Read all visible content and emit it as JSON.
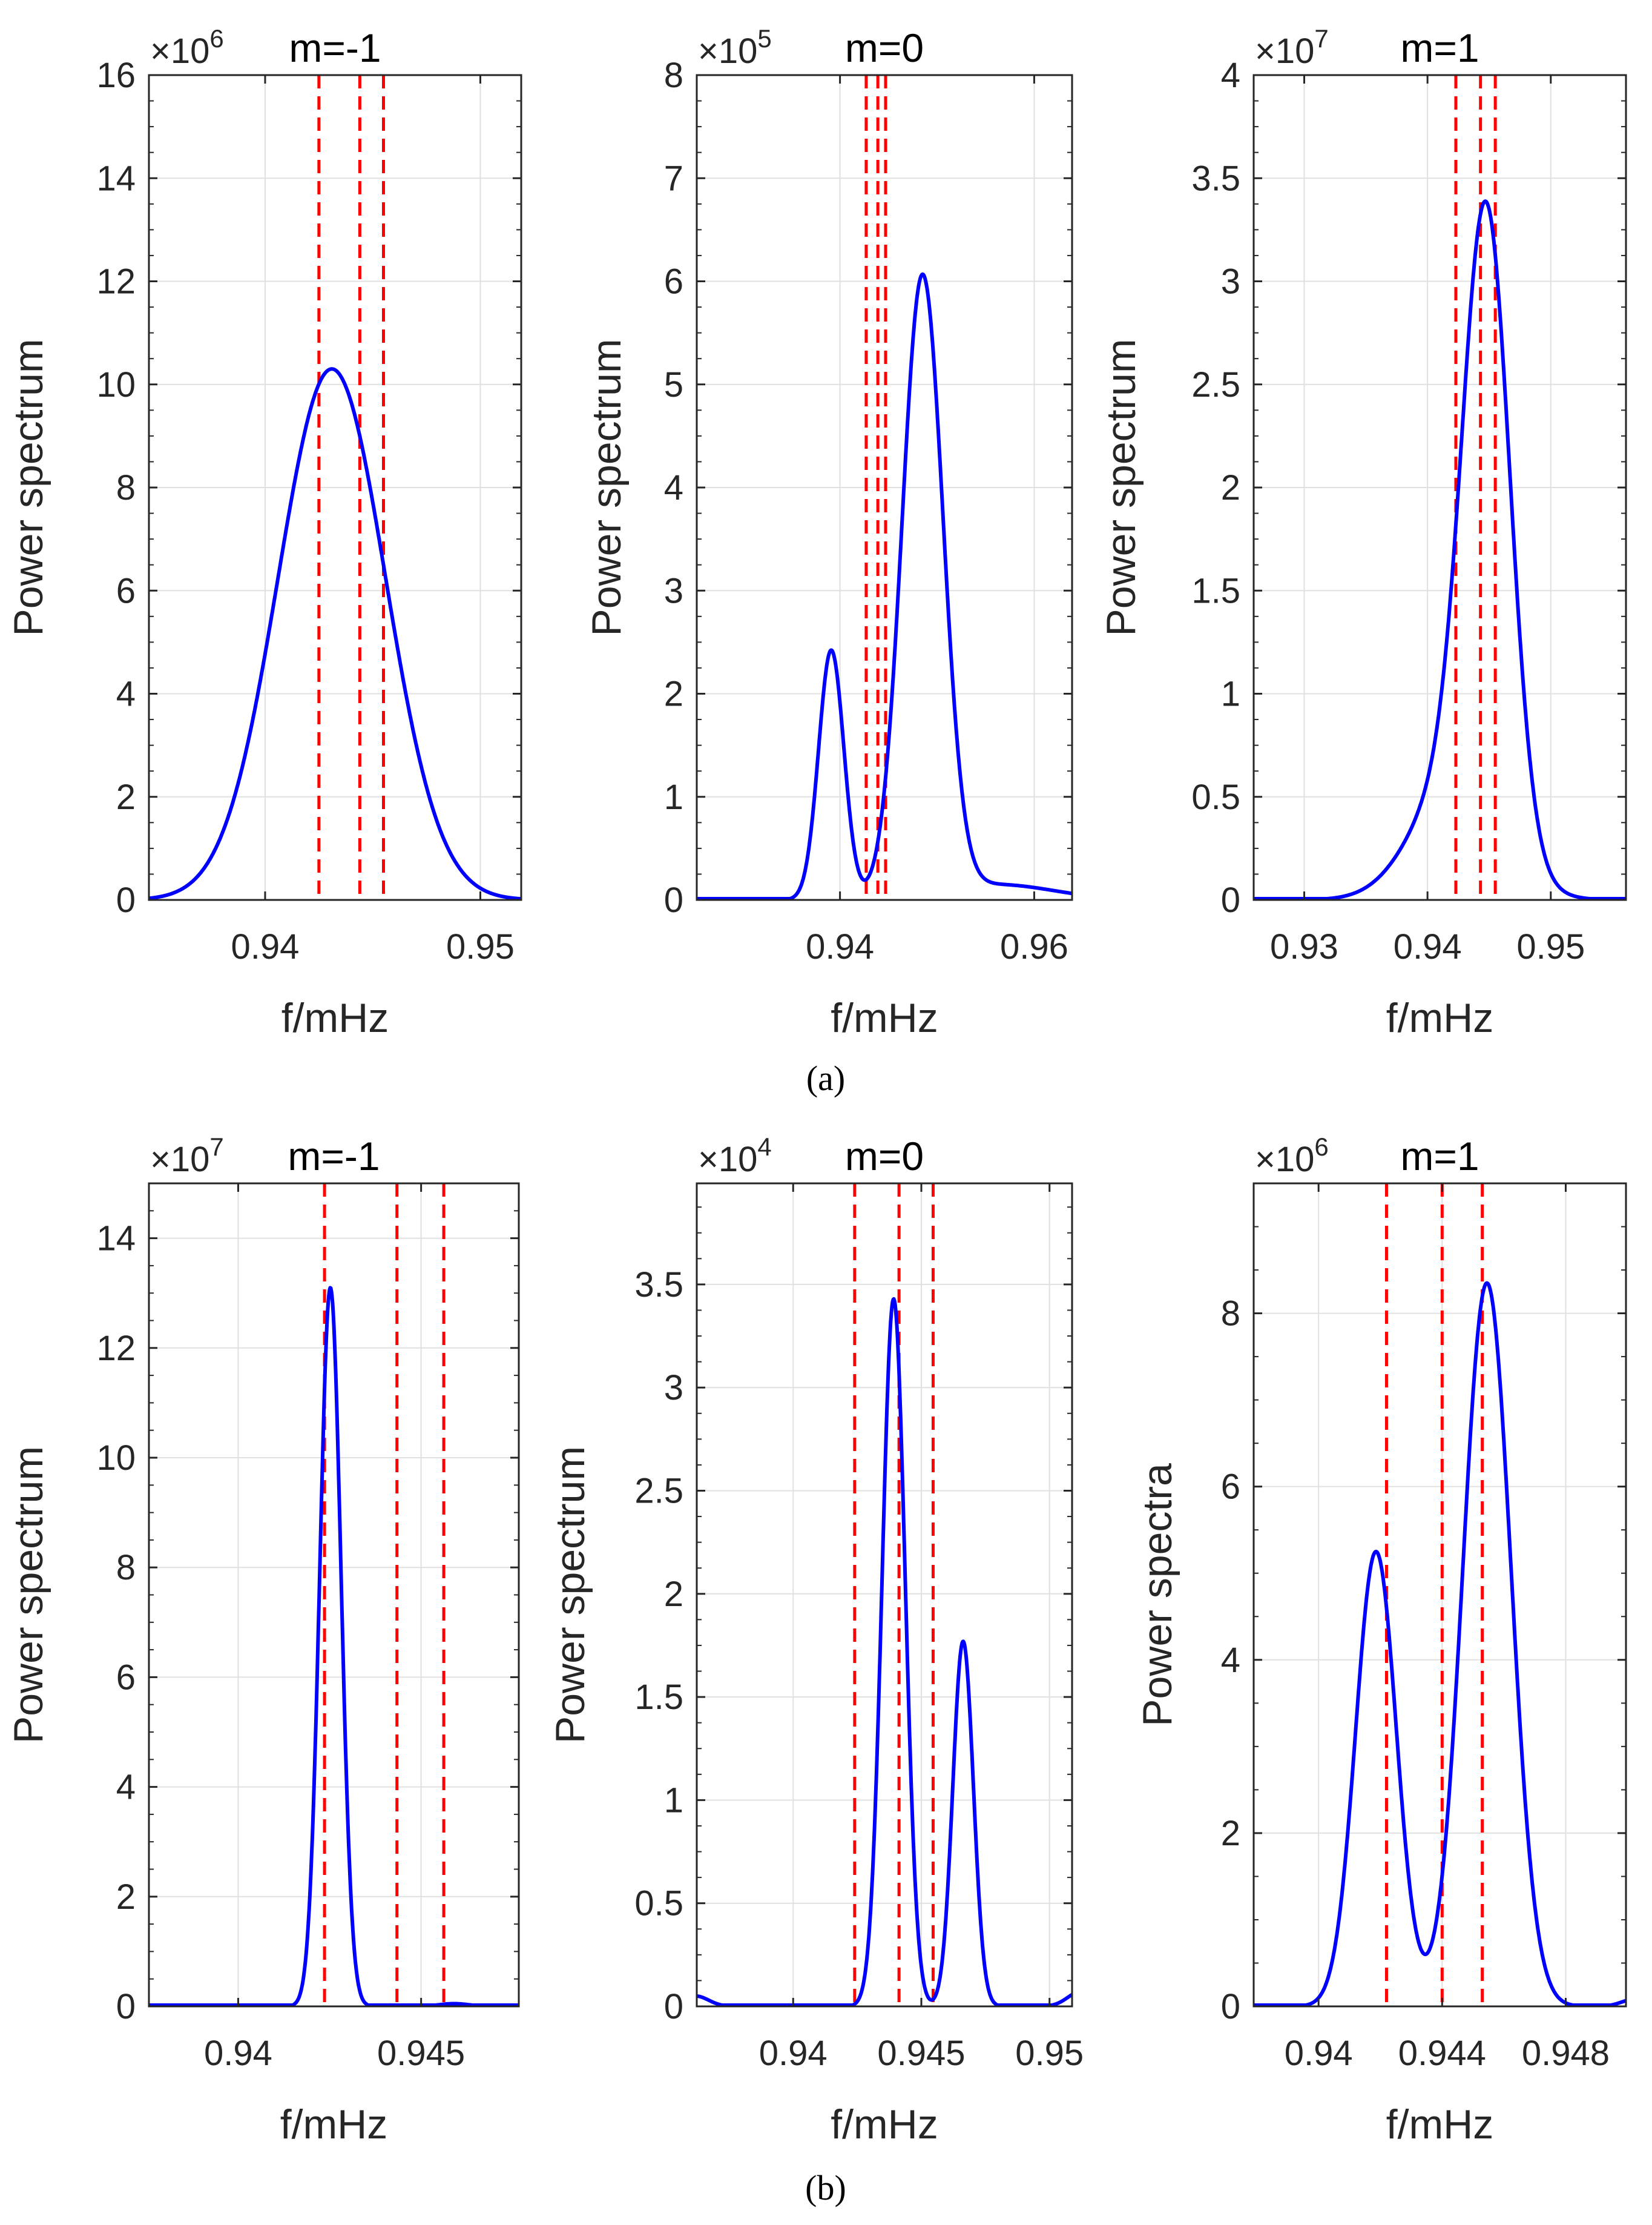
{
  "chart_data": [
    {
      "id": "a1",
      "type": "line",
      "title": "m=-1",
      "exponent": "6",
      "xlabel": "f/mHz",
      "ylabel": "Power spectrum",
      "xlim": [
        0.9346,
        0.9519
      ],
      "ylim": [
        0,
        16
      ],
      "xticks": [
        0.94,
        0.95
      ],
      "xticklabels": [
        "0.94",
        "0.95"
      ],
      "yticks": [
        0,
        2,
        4,
        6,
        8,
        10,
        12,
        14,
        16
      ],
      "yticklabels": [
        "0",
        "2",
        "4",
        "6",
        "8",
        "10",
        "12",
        "14",
        "16"
      ],
      "vlines": [
        0.9425,
        0.9444,
        0.9455
      ],
      "curve_components": [
        {
          "center": 0.9431,
          "height": 10.3,
          "width": 0.0025
        }
      ],
      "baseline_tail": 0
    },
    {
      "id": "a2",
      "type": "line",
      "title": "m=0",
      "exponent": "5",
      "xlabel": "f/mHz",
      "ylabel": "Power spectrum",
      "xlim": [
        0.92525,
        0.9639
      ],
      "ylim": [
        0,
        8
      ],
      "xticks": [
        0.94,
        0.96
      ],
      "xticklabels": [
        "0.94",
        "0.96"
      ],
      "yticks": [
        0,
        1,
        2,
        3,
        4,
        5,
        6,
        7,
        8
      ],
      "yticklabels": [
        "0",
        "1",
        "2",
        "3",
        "4",
        "5",
        "6",
        "7",
        "8"
      ],
      "vlines": [
        0.9427,
        0.9439,
        0.9447
      ],
      "curve_components": [
        {
          "center": 0.9391,
          "height": 2.42,
          "width": 0.0013
        },
        {
          "center": 0.9485,
          "height": 6.0,
          "width": 0.0021
        },
        {
          "center": 0.956,
          "height": 0.15,
          "width": 0.006
        }
      ],
      "baseline_tail": 0
    },
    {
      "id": "a3",
      "type": "line",
      "title": "m=1",
      "exponent": "7",
      "xlabel": "f/mHz",
      "ylabel": "Power spectrum",
      "xlim": [
        0.9259,
        0.9561
      ],
      "ylim": [
        0,
        4
      ],
      "xticks": [
        0.93,
        0.94,
        0.95
      ],
      "xticklabels": [
        "0.93",
        "0.94",
        "0.95"
      ],
      "yticks": [
        0,
        0.5,
        1,
        1.5,
        2,
        2.5,
        3,
        3.5,
        4
      ],
      "yticklabels": [
        "0",
        "0.5",
        "1",
        "1.5",
        "2",
        "2.5",
        "3",
        "3.5",
        "4"
      ],
      "vlines": [
        0.9423,
        0.9443,
        0.9455
      ],
      "curve_components": [
        {
          "center": 0.9448,
          "height": 2.9,
          "width": 0.0019
        },
        {
          "center": 0.9425,
          "height": 0.6,
          "width": 0.0035
        }
      ],
      "baseline_tail": 0
    },
    {
      "id": "b1",
      "type": "line",
      "title": "m=-1",
      "exponent": "7",
      "xlabel": "f/mHz",
      "ylabel": "Power spectrum",
      "xlim": [
        0.93756,
        0.94767
      ],
      "ylim": [
        0,
        15
      ],
      "xticks": [
        0.94,
        0.945
      ],
      "xticklabels": [
        "0.94",
        "0.945"
      ],
      "yticks": [
        0,
        2,
        4,
        6,
        8,
        10,
        12,
        14
      ],
      "yticklabels": [
        "0",
        "2",
        "4",
        "6",
        "8",
        "10",
        "12",
        "14"
      ],
      "vlines": [
        0.94236,
        0.94434,
        0.94562
      ],
      "curve_components": [
        {
          "center": 0.94252,
          "height": 13.1,
          "width": 0.00029
        },
        {
          "center": 0.9459,
          "height": 0.05,
          "width": 0.0004
        }
      ],
      "baseline_tail": 0
    },
    {
      "id": "b2",
      "type": "line",
      "title": "m=0",
      "exponent": "4",
      "xlabel": "f/mHz",
      "ylabel": "Power spectrum",
      "xlim": [
        0.93624,
        0.95088
      ],
      "ylim": [
        0,
        3.99
      ],
      "xticks": [
        0.94,
        0.945,
        0.95
      ],
      "xticklabels": [
        "0.94",
        "0.945",
        "0.95"
      ],
      "yticks": [
        0,
        0.5,
        1,
        1.5,
        2,
        2.5,
        3,
        3.5
      ],
      "yticklabels": [
        "0",
        "0.5",
        "1",
        "1.5",
        "2",
        "2.5",
        "3",
        "3.5"
      ],
      "vlines": [
        0.9424,
        0.94413,
        0.94546
      ],
      "curve_components": [
        {
          "center": 0.94392,
          "height": 3.43,
          "width": 0.00045
        },
        {
          "center": 0.94663,
          "height": 1.77,
          "width": 0.0004
        },
        {
          "center": 0.9362,
          "height": 0.05,
          "width": 0.0005
        },
        {
          "center": 0.9512,
          "height": 0.07,
          "width": 0.0005
        }
      ],
      "baseline_tail": 0
    },
    {
      "id": "b3",
      "type": "line",
      "title": "m=1",
      "exponent": "6",
      "xlabel": "f/mHz",
      "ylabel": "Power spectra",
      "xlim": [
        0.9379,
        0.94995
      ],
      "ylim": [
        0,
        9.5
      ],
      "xticks": [
        0.94,
        0.944,
        0.948
      ],
      "xticklabels": [
        "0.94",
        "0.944",
        "0.948"
      ],
      "yticks": [
        0,
        2,
        4,
        6,
        8
      ],
      "yticklabels": [
        "0",
        "2",
        "4",
        "6",
        "8"
      ],
      "vlines": [
        0.9422,
        0.944,
        0.9453
      ],
      "curve_components": [
        {
          "center": 0.94186,
          "height": 5.25,
          "width": 0.00066
        },
        {
          "center": 0.94545,
          "height": 8.35,
          "width": 0.00078
        },
        {
          "center": 0.9502,
          "height": 0.08,
          "width": 0.0004
        }
      ],
      "baseline_tail": 0
    }
  ],
  "captions": {
    "a": "(a)",
    "b": "(b)"
  },
  "colors": {
    "curve": "#0000ff",
    "vline": "#ff0000",
    "grid": "#e0e0e0",
    "axis": "#262626"
  }
}
